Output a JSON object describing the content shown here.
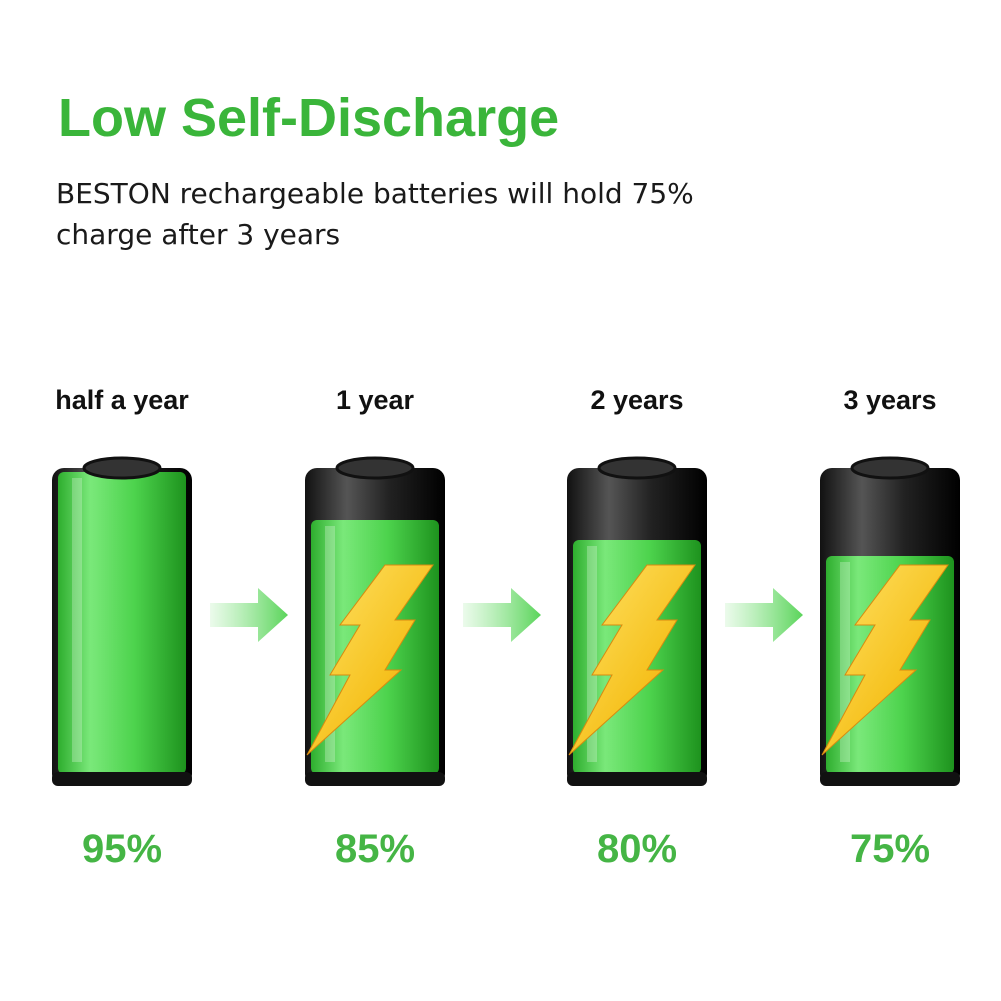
{
  "header": {
    "title": "Low Self-Discharge",
    "subtitle_lines": [
      "BESTON rechargeable batteries will hold 75%",
      "charge after 3 years"
    ]
  },
  "stages": [
    {
      "label": "half a year",
      "charge": "95%"
    },
    {
      "label": "1 year",
      "charge": "85%"
    },
    {
      "label": "2 years",
      "charge": "80%"
    },
    {
      "label": "3 years",
      "charge": "75%"
    }
  ]
}
